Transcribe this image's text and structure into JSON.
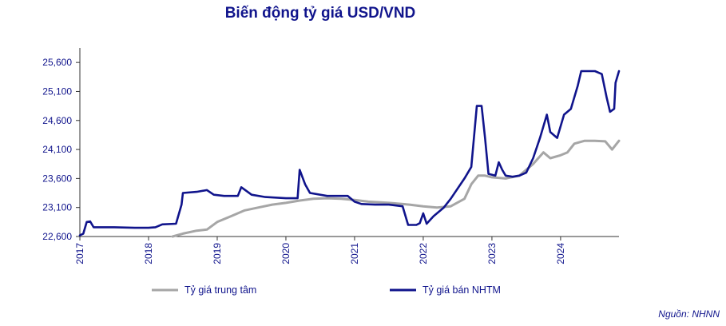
{
  "chart_data": {
    "type": "line",
    "title": "Biến động tỷ giá USD/VND",
    "xlabel": "",
    "ylabel": "",
    "ylim": [
      22600,
      25850
    ],
    "xlim": [
      2017.0,
      2024.85
    ],
    "y_ticks": [
      22600,
      23100,
      23600,
      24100,
      24600,
      25100,
      25600
    ],
    "y_tick_labels": [
      "22,600",
      "23,100",
      "23,600",
      "24,100",
      "24,600",
      "25,100",
      "25,600"
    ],
    "x_ticks": [
      2017,
      2018,
      2019,
      2020,
      2021,
      2022,
      2023,
      2024
    ],
    "x_tick_labels": [
      "2017",
      "2018",
      "2019",
      "2020",
      "2021",
      "2022",
      "2023",
      "2024"
    ],
    "legend_position": "bottom",
    "grid": false,
    "series": [
      {
        "name": "Tỷ giá trung tâm",
        "color": "#a6a6a6",
        "points": [
          [
            2018.35,
            22600
          ],
          [
            2018.5,
            22650
          ],
          [
            2018.7,
            22700
          ],
          [
            2018.85,
            22720
          ],
          [
            2019.0,
            22850
          ],
          [
            2019.2,
            22950
          ],
          [
            2019.4,
            23050
          ],
          [
            2019.6,
            23100
          ],
          [
            2019.8,
            23150
          ],
          [
            2020.0,
            23180
          ],
          [
            2020.2,
            23220
          ],
          [
            2020.4,
            23250
          ],
          [
            2020.6,
            23260
          ],
          [
            2020.8,
            23250
          ],
          [
            2021.0,
            23230
          ],
          [
            2021.2,
            23200
          ],
          [
            2021.5,
            23180
          ],
          [
            2021.8,
            23150
          ],
          [
            2022.0,
            23120
          ],
          [
            2022.2,
            23100
          ],
          [
            2022.4,
            23120
          ],
          [
            2022.6,
            23250
          ],
          [
            2022.7,
            23500
          ],
          [
            2022.8,
            23650
          ],
          [
            2022.9,
            23650
          ],
          [
            2023.0,
            23620
          ],
          [
            2023.2,
            23600
          ],
          [
            2023.4,
            23650
          ],
          [
            2023.6,
            23850
          ],
          [
            2023.75,
            24050
          ],
          [
            2023.85,
            23950
          ],
          [
            2024.0,
            24000
          ],
          [
            2024.1,
            24050
          ],
          [
            2024.2,
            24200
          ],
          [
            2024.35,
            24250
          ],
          [
            2024.5,
            24250
          ],
          [
            2024.65,
            24240
          ],
          [
            2024.75,
            24100
          ],
          [
            2024.85,
            24250
          ]
        ]
      },
      {
        "name": "Tỷ giá bán NHTM",
        "color": "#10148c",
        "points": [
          [
            2017.0,
            22620
          ],
          [
            2017.05,
            22650
          ],
          [
            2017.1,
            22850
          ],
          [
            2017.15,
            22860
          ],
          [
            2017.2,
            22760
          ],
          [
            2017.3,
            22760
          ],
          [
            2017.5,
            22760
          ],
          [
            2017.8,
            22750
          ],
          [
            2018.0,
            22750
          ],
          [
            2018.1,
            22760
          ],
          [
            2018.2,
            22810
          ],
          [
            2018.4,
            22820
          ],
          [
            2018.48,
            23150
          ],
          [
            2018.5,
            23350
          ],
          [
            2018.7,
            23370
          ],
          [
            2018.85,
            23400
          ],
          [
            2018.95,
            23320
          ],
          [
            2019.1,
            23300
          ],
          [
            2019.3,
            23300
          ],
          [
            2019.35,
            23450
          ],
          [
            2019.5,
            23320
          ],
          [
            2019.7,
            23280
          ],
          [
            2020.0,
            23260
          ],
          [
            2020.17,
            23260
          ],
          [
            2020.2,
            23750
          ],
          [
            2020.28,
            23500
          ],
          [
            2020.35,
            23350
          ],
          [
            2020.6,
            23300
          ],
          [
            2020.9,
            23300
          ],
          [
            2021.0,
            23200
          ],
          [
            2021.1,
            23160
          ],
          [
            2021.3,
            23150
          ],
          [
            2021.5,
            23150
          ],
          [
            2021.7,
            23120
          ],
          [
            2021.78,
            22800
          ],
          [
            2021.9,
            22800
          ],
          [
            2021.95,
            22830
          ],
          [
            2022.0,
            23000
          ],
          [
            2022.05,
            22820
          ],
          [
            2022.15,
            22950
          ],
          [
            2022.3,
            23100
          ],
          [
            2022.4,
            23250
          ],
          [
            2022.6,
            23600
          ],
          [
            2022.7,
            23800
          ],
          [
            2022.78,
            24850
          ],
          [
            2022.85,
            24850
          ],
          [
            2022.9,
            24300
          ],
          [
            2022.95,
            23680
          ],
          [
            2023.05,
            23650
          ],
          [
            2023.1,
            23880
          ],
          [
            2023.15,
            23750
          ],
          [
            2023.2,
            23650
          ],
          [
            2023.3,
            23630
          ],
          [
            2023.4,
            23650
          ],
          [
            2023.5,
            23700
          ],
          [
            2023.6,
            23950
          ],
          [
            2023.7,
            24300
          ],
          [
            2023.8,
            24700
          ],
          [
            2023.85,
            24400
          ],
          [
            2023.95,
            24300
          ],
          [
            2024.05,
            24700
          ],
          [
            2024.15,
            24800
          ],
          [
            2024.25,
            25200
          ],
          [
            2024.3,
            25450
          ],
          [
            2024.5,
            25450
          ],
          [
            2024.6,
            25400
          ],
          [
            2024.67,
            25000
          ],
          [
            2024.72,
            24750
          ],
          [
            2024.78,
            24800
          ],
          [
            2024.8,
            25250
          ],
          [
            2024.85,
            25450
          ]
        ]
      }
    ]
  },
  "source_note": "Nguồn: NHNN"
}
